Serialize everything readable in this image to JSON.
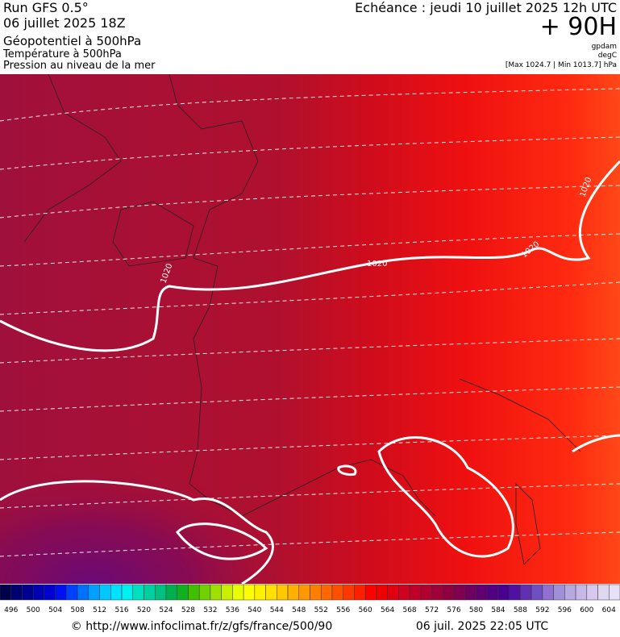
{
  "header": {
    "run": "Run GFS 0.5°",
    "date": "06 juillet 2025 18Z",
    "field1": "Géopotentiel à 500hPa",
    "field2": "Température à 500hPa",
    "field3": "Pression au niveau de la mer",
    "valid": "Echéance : jeudi 10 juillet 2025 12h UTC",
    "lead": "+ 90H",
    "unit1": "gpdam",
    "unit2": "degC",
    "range": "[Max 1024.7 | Min 1013.7] hPa"
  },
  "map": {
    "contour_labels": [
      "1020",
      "1020",
      "1020",
      "1020"
    ]
  },
  "legend": {
    "labels": [
      496,
      500,
      504,
      508,
      512,
      516,
      520,
      524,
      528,
      532,
      536,
      540,
      544,
      548,
      552,
      556,
      560,
      564,
      568,
      572,
      576,
      580,
      584,
      588,
      592,
      596,
      600,
      604
    ],
    "colors": [
      "#00004b",
      "#000070",
      "#000090",
      "#0000b0",
      "#0000d0",
      "#0010f0",
      "#0040ff",
      "#0070ff",
      "#00a0ff",
      "#00c8ff",
      "#00e0ff",
      "#00f0f0",
      "#00e0c0",
      "#00d0a0",
      "#00c080",
      "#00b050",
      "#10b020",
      "#40c000",
      "#70d000",
      "#a0e000",
      "#c8f000",
      "#e8ff00",
      "#ffff00",
      "#fff000",
      "#ffe000",
      "#ffc800",
      "#ffb000",
      "#ff9800",
      "#ff8000",
      "#ff6800",
      "#ff5000",
      "#ff3800",
      "#ff2000",
      "#ff0000",
      "#f00000",
      "#e00010",
      "#d00020",
      "#c00028",
      "#b00030",
      "#a00038",
      "#900040",
      "#800050",
      "#700060",
      "#600070",
      "#500080",
      "#480090",
      "#5010a0",
      "#6030b0",
      "#7050c0",
      "#9070d0",
      "#a090d8",
      "#b8a8e0",
      "#c8b8e8",
      "#d8c8f0",
      "#e0d8f0",
      "#e8e0f8"
    ]
  },
  "footer": {
    "url": "© http://www.infoclimat.fr/z/gfs/france/500/90",
    "generated": "06 juil. 2025 22:05 UTC"
  }
}
